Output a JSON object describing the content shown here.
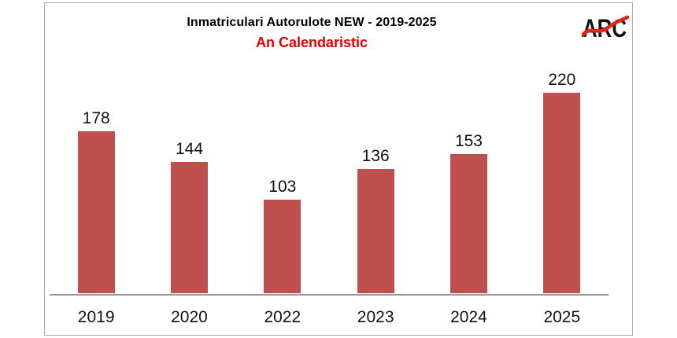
{
  "header": {
    "title": "Inmatriculari Autorulote NEW - 2019-2025",
    "subtitle": "An Calendaristic",
    "logo_text": "ARC"
  },
  "colors": {
    "bar": "#c0504d",
    "subtitle": "#e00000",
    "axis": "#969696",
    "border": "#ababab",
    "logo_swoosh": "#e02619",
    "text": "#111111"
  },
  "chart_data": {
    "type": "bar",
    "title": "Inmatriculari Autorulote NEW - 2019-2025",
    "subtitle": "An Calendaristic",
    "categories": [
      "2019",
      "2020",
      "2022",
      "2023",
      "2024",
      "2025"
    ],
    "values": [
      178,
      144,
      103,
      136,
      153,
      220
    ],
    "xlabel": "",
    "ylabel": "",
    "ylim": [
      0,
      250
    ],
    "grid": false,
    "y_axis_visible": false,
    "data_labels": true,
    "legend_position": "none",
    "bar_color": "#c0504d"
  }
}
